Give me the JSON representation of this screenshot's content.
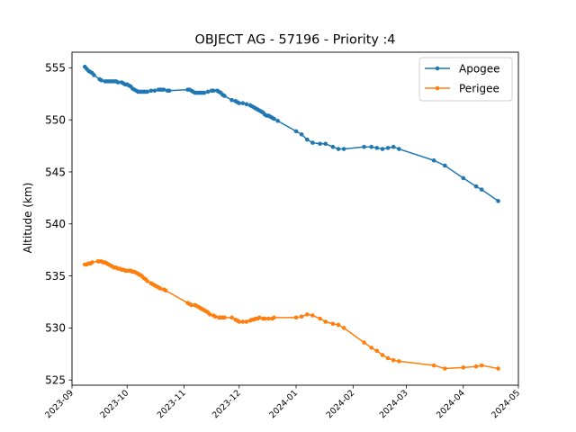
{
  "chart_data": {
    "type": "line",
    "title": "OBJECT AG - 57196 - Priority :4",
    "xlabel": "",
    "ylabel": "Altitude (km)",
    "xlim": [
      "2023-09-01",
      "2024-05-01"
    ],
    "ylim": [
      524.5,
      556.5
    ],
    "x_ticks": [
      "2023-09",
      "2023-10",
      "2023-11",
      "2023-12",
      "2024-01",
      "2024-02",
      "2024-03",
      "2024-04",
      "2024-05"
    ],
    "y_ticks": [
      525,
      530,
      535,
      540,
      545,
      550,
      555
    ],
    "legend_position": "top-right",
    "grid": false,
    "series": [
      {
        "name": "Apogee",
        "color": "#1f77b4",
        "points": [
          [
            "2023-09-08",
            555.1
          ],
          [
            "2023-09-09",
            554.9
          ],
          [
            "2023-09-10",
            554.7
          ],
          [
            "2023-09-11",
            554.6
          ],
          [
            "2023-09-12",
            554.5
          ],
          [
            "2023-09-13",
            554.3
          ],
          [
            "2023-09-16",
            553.9
          ],
          [
            "2023-09-17",
            553.8
          ],
          [
            "2023-09-19",
            553.7
          ],
          [
            "2023-09-20",
            553.7
          ],
          [
            "2023-09-21",
            553.7
          ],
          [
            "2023-09-22",
            553.7
          ],
          [
            "2023-09-23",
            553.7
          ],
          [
            "2023-09-24",
            553.7
          ],
          [
            "2023-09-25",
            553.7
          ],
          [
            "2023-09-26",
            553.6
          ],
          [
            "2023-09-28",
            553.6
          ],
          [
            "2023-09-29",
            553.5
          ],
          [
            "2023-09-30",
            553.4
          ],
          [
            "2023-10-01",
            553.4
          ],
          [
            "2023-10-02",
            553.3
          ],
          [
            "2023-10-03",
            553.2
          ],
          [
            "2023-10-04",
            553.0
          ],
          [
            "2023-10-05",
            552.9
          ],
          [
            "2023-10-06",
            552.8
          ],
          [
            "2023-10-07",
            552.7
          ],
          [
            "2023-10-08",
            552.7
          ],
          [
            "2023-10-09",
            552.7
          ],
          [
            "2023-10-10",
            552.7
          ],
          [
            "2023-10-11",
            552.7
          ],
          [
            "2023-10-12",
            552.7
          ],
          [
            "2023-10-14",
            552.8
          ],
          [
            "2023-10-16",
            552.8
          ],
          [
            "2023-10-18",
            552.9
          ],
          [
            "2023-10-19",
            552.9
          ],
          [
            "2023-10-20",
            552.9
          ],
          [
            "2023-10-21",
            552.9
          ],
          [
            "2023-10-23",
            552.8
          ],
          [
            "2023-10-24",
            552.8
          ],
          [
            "2023-11-03",
            552.9
          ],
          [
            "2023-11-04",
            552.9
          ],
          [
            "2023-11-05",
            552.8
          ],
          [
            "2023-11-06",
            552.7
          ],
          [
            "2023-11-07",
            552.6
          ],
          [
            "2023-11-08",
            552.6
          ],
          [
            "2023-11-09",
            552.6
          ],
          [
            "2023-11-10",
            552.6
          ],
          [
            "2023-11-11",
            552.6
          ],
          [
            "2023-11-12",
            552.6
          ],
          [
            "2023-11-14",
            552.7
          ],
          [
            "2023-11-16",
            552.8
          ],
          [
            "2023-11-17",
            552.8
          ],
          [
            "2023-11-19",
            552.8
          ],
          [
            "2023-11-20",
            552.7
          ],
          [
            "2023-11-21",
            552.6
          ],
          [
            "2023-11-22",
            552.4
          ],
          [
            "2023-11-23",
            552.3
          ],
          [
            "2023-11-27",
            551.9
          ],
          [
            "2023-11-29",
            551.8
          ],
          [
            "2023-11-30",
            551.7
          ],
          [
            "2023-12-01",
            551.6
          ],
          [
            "2023-12-03",
            551.6
          ],
          [
            "2023-12-05",
            551.5
          ],
          [
            "2023-12-07",
            551.4
          ],
          [
            "2023-12-08",
            551.3
          ],
          [
            "2023-12-09",
            551.2
          ],
          [
            "2023-12-10",
            551.1
          ],
          [
            "2023-12-11",
            551.0
          ],
          [
            "2023-12-12",
            550.9
          ],
          [
            "2023-12-13",
            550.8
          ],
          [
            "2023-12-14",
            550.7
          ],
          [
            "2023-12-15",
            550.5
          ],
          [
            "2023-12-16",
            550.4
          ],
          [
            "2023-12-17",
            550.4
          ],
          [
            "2023-12-18",
            550.3
          ],
          [
            "2023-12-19",
            550.2
          ],
          [
            "2023-12-20",
            550.1
          ],
          [
            "2023-12-22",
            549.9
          ],
          [
            "2024-01-01",
            548.9
          ],
          [
            "2024-01-04",
            548.6
          ],
          [
            "2024-01-07",
            548.1
          ],
          [
            "2024-01-10",
            547.8
          ],
          [
            "2024-01-14",
            547.7
          ],
          [
            "2024-01-17",
            547.7
          ],
          [
            "2024-01-21",
            547.4
          ],
          [
            "2024-01-24",
            547.2
          ],
          [
            "2024-01-27",
            547.2
          ],
          [
            "2024-02-07",
            547.4
          ],
          [
            "2024-02-11",
            547.4
          ],
          [
            "2024-02-14",
            547.3
          ],
          [
            "2024-02-17",
            547.2
          ],
          [
            "2024-02-20",
            547.3
          ],
          [
            "2024-02-23",
            547.4
          ],
          [
            "2024-02-26",
            547.2
          ],
          [
            "2024-03-16",
            546.1
          ],
          [
            "2024-03-22",
            545.6
          ],
          [
            "2024-04-01",
            544.4
          ],
          [
            "2024-04-08",
            543.6
          ],
          [
            "2024-04-11",
            543.3
          ],
          [
            "2024-04-20",
            542.2
          ]
        ]
      },
      {
        "name": "Perigee",
        "color": "#ff7f0e",
        "points": [
          [
            "2023-09-08",
            536.1
          ],
          [
            "2023-09-09",
            536.1
          ],
          [
            "2023-09-10",
            536.2
          ],
          [
            "2023-09-11",
            536.2
          ],
          [
            "2023-09-12",
            536.3
          ],
          [
            "2023-09-15",
            536.4
          ],
          [
            "2023-09-16",
            536.4
          ],
          [
            "2023-09-17",
            536.4
          ],
          [
            "2023-09-18",
            536.3
          ],
          [
            "2023-09-19",
            536.3
          ],
          [
            "2023-09-20",
            536.2
          ],
          [
            "2023-09-21",
            536.1
          ],
          [
            "2023-09-22",
            536.0
          ],
          [
            "2023-09-23",
            535.9
          ],
          [
            "2023-09-24",
            535.8
          ],
          [
            "2023-09-25",
            535.8
          ],
          [
            "2023-09-26",
            535.7
          ],
          [
            "2023-09-27",
            535.7
          ],
          [
            "2023-09-28",
            535.6
          ],
          [
            "2023-09-29",
            535.6
          ],
          [
            "2023-09-30",
            535.5
          ],
          [
            "2023-10-01",
            535.5
          ],
          [
            "2023-10-02",
            535.5
          ],
          [
            "2023-10-03",
            535.5
          ],
          [
            "2023-10-04",
            535.4
          ],
          [
            "2023-10-05",
            535.4
          ],
          [
            "2023-10-06",
            535.3
          ],
          [
            "2023-10-07",
            535.2
          ],
          [
            "2023-10-08",
            535.1
          ],
          [
            "2023-10-09",
            535.0
          ],
          [
            "2023-10-10",
            534.8
          ],
          [
            "2023-10-11",
            534.7
          ],
          [
            "2023-10-12",
            534.5
          ],
          [
            "2023-10-14",
            534.3
          ],
          [
            "2023-10-15",
            534.2
          ],
          [
            "2023-10-16",
            534.1
          ],
          [
            "2023-10-17",
            534.0
          ],
          [
            "2023-10-18",
            533.9
          ],
          [
            "2023-10-19",
            533.8
          ],
          [
            "2023-10-21",
            533.7
          ],
          [
            "2023-10-22",
            533.6
          ],
          [
            "2023-11-03",
            532.4
          ],
          [
            "2023-11-04",
            532.3
          ],
          [
            "2023-11-05",
            532.2
          ],
          [
            "2023-11-07",
            532.2
          ],
          [
            "2023-11-08",
            532.1
          ],
          [
            "2023-11-09",
            532.0
          ],
          [
            "2023-11-10",
            531.9
          ],
          [
            "2023-11-11",
            531.8
          ],
          [
            "2023-11-12",
            531.7
          ],
          [
            "2023-11-13",
            531.6
          ],
          [
            "2023-11-14",
            531.5
          ],
          [
            "2023-11-15",
            531.3
          ],
          [
            "2023-11-17",
            531.2
          ],
          [
            "2023-11-18",
            531.1
          ],
          [
            "2023-11-20",
            531.0
          ],
          [
            "2023-11-21",
            531.0
          ],
          [
            "2023-11-22",
            531.0
          ],
          [
            "2023-11-23",
            531.0
          ],
          [
            "2023-11-27",
            531.0
          ],
          [
            "2023-11-29",
            530.8
          ],
          [
            "2023-11-30",
            530.7
          ],
          [
            "2023-12-01",
            530.6
          ],
          [
            "2023-12-03",
            530.6
          ],
          [
            "2023-12-05",
            530.6
          ],
          [
            "2023-12-07",
            530.7
          ],
          [
            "2023-12-08",
            530.8
          ],
          [
            "2023-12-09",
            530.8
          ],
          [
            "2023-12-10",
            530.9
          ],
          [
            "2023-12-11",
            530.9
          ],
          [
            "2023-12-12",
            531.0
          ],
          [
            "2023-12-14",
            530.9
          ],
          [
            "2023-12-15",
            530.9
          ],
          [
            "2023-12-17",
            530.9
          ],
          [
            "2023-12-19",
            530.9
          ],
          [
            "2023-12-20",
            531.0
          ],
          [
            "2024-01-01",
            531.0
          ],
          [
            "2024-01-04",
            531.1
          ],
          [
            "2024-01-07",
            531.3
          ],
          [
            "2024-01-10",
            531.2
          ],
          [
            "2024-01-14",
            530.9
          ],
          [
            "2024-01-17",
            530.6
          ],
          [
            "2024-01-21",
            530.4
          ],
          [
            "2024-01-24",
            530.3
          ],
          [
            "2024-01-27",
            530.0
          ],
          [
            "2024-02-07",
            528.6
          ],
          [
            "2024-02-11",
            528.1
          ],
          [
            "2024-02-14",
            527.8
          ],
          [
            "2024-02-17",
            527.4
          ],
          [
            "2024-02-20",
            527.1
          ],
          [
            "2024-02-23",
            526.9
          ],
          [
            "2024-02-26",
            526.8
          ],
          [
            "2024-03-16",
            526.4
          ],
          [
            "2024-03-22",
            526.1
          ],
          [
            "2024-04-01",
            526.2
          ],
          [
            "2024-04-08",
            526.3
          ],
          [
            "2024-04-11",
            526.4
          ],
          [
            "2024-04-20",
            526.1
          ]
        ]
      }
    ]
  }
}
